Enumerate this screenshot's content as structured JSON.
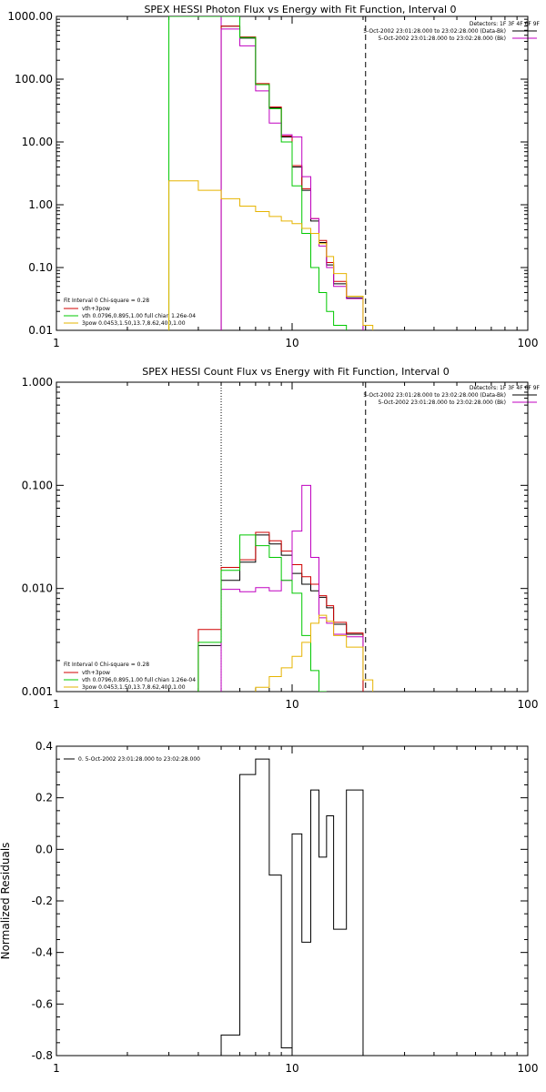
{
  "chart_data": [
    {
      "type": "line",
      "title": "SPEX HESSI Photon Flux vs Energy with Fit Function, Interval 0",
      "xscale": "log",
      "yscale": "log",
      "xlim": [
        1,
        100
      ],
      "ylim": [
        0.01,
        1000
      ],
      "xticks": [
        "1",
        "10",
        "100"
      ],
      "yticks": [
        "0.01",
        "0.10",
        "1.00",
        "10.00",
        "100.00",
        "1000.00"
      ],
      "header": {
        "detectors": "Detectors: 1F 3F 4F 6F 9F",
        "line1": "5-Oct-2002 23:01:28.000 to 23:02:28.000 (Data-Bk)",
        "line2": "5-Oct-2002 23:01:28.000 to 23:02:28.000 (Bk)"
      },
      "legend": [
        {
          "label": "Fit Interval 0   Chi-square = 0.28",
          "color": ""
        },
        {
          "label": "vth+3pow",
          "color": "#d00000"
        },
        {
          "label": "vth 0.0796,0.895,1.00  full chian 1.26e-04",
          "color": "#00c800"
        },
        {
          "label": "3pow 0.0453,1.50,13.7,8.62,400,1.00",
          "color": "#e6b400"
        }
      ],
      "vlines": [
        {
          "x": 5,
          "style": "solid",
          "color": "#c000c0"
        },
        {
          "x": 20.5,
          "style": "dashed",
          "color": "#000000"
        }
      ],
      "series": [
        {
          "color": "#000000",
          "edges": [
            5,
            6,
            7,
            8,
            9,
            10,
            11,
            12,
            13,
            14,
            15,
            17,
            20
          ],
          "values": [
            700,
            450,
            82,
            35,
            12,
            4,
            1.7,
            0.55,
            0.25,
            0.11,
            0.055,
            0.033
          ]
        },
        {
          "color": "#d00000",
          "edges": [
            5,
            6,
            7,
            8,
            9,
            10,
            11,
            12,
            13,
            14,
            15,
            17,
            20
          ],
          "values": [
            700,
            470,
            85,
            36,
            12.5,
            4.2,
            1.8,
            0.6,
            0.27,
            0.12,
            0.06,
            0.035
          ]
        },
        {
          "color": "#c000c0",
          "edges": [
            5,
            6,
            7,
            8,
            9,
            10,
            11,
            12,
            13,
            14,
            15,
            17,
            20
          ],
          "values": [
            630,
            340,
            65,
            20,
            13,
            12,
            2.8,
            0.6,
            0.22,
            0.1,
            0.05,
            0.032
          ]
        },
        {
          "color": "#00c800",
          "edges": [
            3,
            5,
            6,
            7,
            8,
            9,
            10,
            11,
            12,
            13,
            14,
            15,
            17
          ],
          "values": [
            1000,
            1000,
            460,
            82,
            34,
            10,
            2,
            0.35,
            0.1,
            0.04,
            0.02,
            0.012
          ]
        },
        {
          "color": "#e6b400",
          "edges": [
            3,
            4,
            5,
            6,
            7,
            8,
            9,
            10,
            11,
            12,
            13,
            14,
            15,
            17,
            20,
            22
          ],
          "values": [
            2.4,
            1.7,
            1.25,
            0.95,
            0.78,
            0.65,
            0.55,
            0.5,
            0.42,
            0.35,
            0.24,
            0.15,
            0.08,
            0.035,
            0.012
          ]
        }
      ]
    },
    {
      "type": "line",
      "title": "SPEX HESSI Count Flux vs Energy with Fit Function, Interval 0",
      "xscale": "log",
      "yscale": "log",
      "xlim": [
        1,
        100
      ],
      "ylim": [
        0.001,
        1
      ],
      "xticks": [
        "1",
        "10",
        "100"
      ],
      "yticks": [
        "0.001",
        "0.010",
        "0.100",
        "1.000"
      ],
      "header": {
        "detectors": "Detectors: 1F 3F 4F 6F 9F",
        "line1": "5-Oct-2002 23:01:28.000 to 23:02:28.000 (Data-Bk)",
        "line2": "5-Oct-2002 23:01:28.000 to 23:02:28.000 (Bk)"
      },
      "legend": [
        {
          "label": "Fit Interval 0   Chi-square = 0.28",
          "color": ""
        },
        {
          "label": "vth+3pow",
          "color": "#d00000"
        },
        {
          "label": "vth 0.0796,0.895,1.00  full chian 1.26e-04",
          "color": "#00c800"
        },
        {
          "label": "3pow 0.0453,1.50,13.7,8.62,400,1.00",
          "color": "#e6b400"
        }
      ],
      "vlines": [
        {
          "x": 5,
          "style": "dotted",
          "color": "#000000"
        },
        {
          "x": 20.5,
          "style": "dashed",
          "color": "#000000"
        }
      ],
      "series": [
        {
          "color": "#000000",
          "edges": [
            4,
            5,
            6,
            7,
            8,
            9,
            10,
            11,
            12,
            13,
            14,
            15,
            17,
            20
          ],
          "values": [
            0.0028,
            0.012,
            0.018,
            0.033,
            0.027,
            0.021,
            0.014,
            0.011,
            0.0095,
            0.0082,
            0.0065,
            0.0045,
            0.0036
          ]
        },
        {
          "color": "#d00000",
          "edges": [
            4,
            5,
            6,
            7,
            8,
            9,
            10,
            11,
            12,
            13,
            14,
            15,
            17,
            20
          ],
          "values": [
            0.004,
            0.016,
            0.019,
            0.035,
            0.029,
            0.023,
            0.017,
            0.013,
            0.011,
            0.0085,
            0.0068,
            0.0047,
            0.0037
          ]
        },
        {
          "color": "#c000c0",
          "edges": [
            5,
            6,
            7,
            8,
            9,
            10,
            11,
            12,
            13,
            14,
            15,
            17,
            20
          ],
          "values": [
            0.0098,
            0.0093,
            0.0102,
            0.0095,
            0.012,
            0.036,
            0.1,
            0.02,
            0.0052,
            0.0046,
            0.0036,
            0.0034,
            0.0027
          ]
        },
        {
          "color": "#00c800",
          "edges": [
            4,
            5,
            6,
            7,
            8,
            9,
            10,
            11,
            12,
            13,
            14
          ],
          "values": [
            0.003,
            0.015,
            0.033,
            0.026,
            0.02,
            0.012,
            0.009,
            0.0035,
            0.0016,
            0.001
          ]
        },
        {
          "color": "#e6b400",
          "edges": [
            7,
            8,
            9,
            10,
            11,
            12,
            13,
            14,
            15,
            17,
            20,
            22
          ],
          "values": [
            0.0011,
            0.0014,
            0.0017,
            0.0022,
            0.003,
            0.0046,
            0.0055,
            0.0048,
            0.0035,
            0.0027,
            0.0013
          ]
        }
      ]
    },
    {
      "type": "line",
      "title": "",
      "xscale": "log",
      "yscale": "linear",
      "xlim": [
        1,
        100
      ],
      "ylim": [
        -0.8,
        0.4
      ],
      "xticks": [
        "1",
        "10",
        "100"
      ],
      "yticks": [
        "-0.8",
        "-0.6",
        "-0.4",
        "-0.2",
        "0.0",
        "0.2",
        "0.4"
      ],
      "ylabel": "Normalized Residuals",
      "legend": [
        {
          "label": "0.  5-Oct-2002 23:01:28.000 to 23:02:28.000",
          "color": "#000000"
        }
      ],
      "series": [
        {
          "color": "#000000",
          "edges": [
            5,
            6,
            7,
            8,
            9,
            10,
            11,
            12,
            13,
            14,
            15,
            17,
            20
          ],
          "values": [
            -0.72,
            0.29,
            0.35,
            -0.1,
            -0.77,
            0.06,
            -0.36,
            0.23,
            -0.03,
            0.13,
            -0.31,
            0.23
          ]
        }
      ]
    }
  ]
}
